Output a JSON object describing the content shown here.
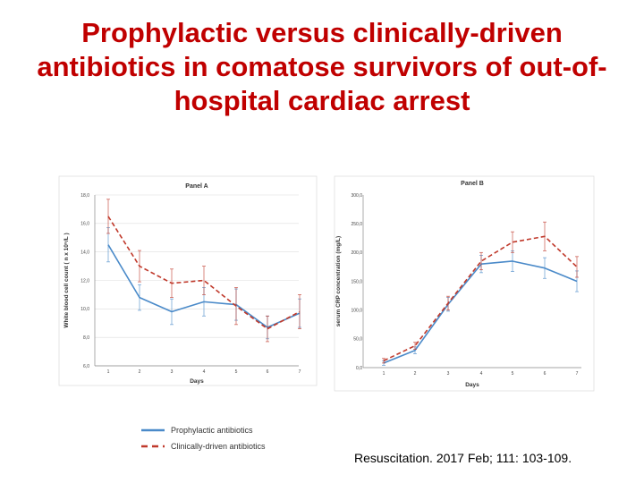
{
  "slide": {
    "title": "Prophylactic versus clinically-driven antibiotics in comatose survivors of out-of-hospital cardiac arrest",
    "citation": "Resuscitation. 2017 Feb; 111: 103-109."
  },
  "legend": [
    {
      "name": "Prophylactic antibiotics",
      "color": "#4a8ac9",
      "dash": false
    },
    {
      "name": "Clinically-driven antibiotics",
      "color": "#c0392b",
      "dash": true
    }
  ],
  "chart_data": [
    {
      "type": "line",
      "title": "Panel A",
      "xlabel": "Days",
      "ylabel": "White blood cell count ( n x 10⁹/L )",
      "x": [
        1,
        2,
        3,
        4,
        5,
        6,
        7
      ],
      "x_ticks": [
        "1",
        "2",
        "3",
        "4",
        "5",
        "6",
        "7"
      ],
      "ylim": [
        6,
        18
      ],
      "y_ticks": [
        "6,0",
        "8,0",
        "10,0",
        "12,0",
        "14,0",
        "16,0",
        "18,0"
      ],
      "grid": true,
      "series": [
        {
          "name": "Prophylactic antibiotics",
          "color": "#4a8ac9",
          "dash": false,
          "values": [
            14.5,
            10.8,
            9.8,
            10.5,
            10.3,
            8.7,
            9.7
          ],
          "err": [
            1.2,
            0.9,
            0.9,
            1.0,
            1.1,
            0.8,
            1.0
          ]
        },
        {
          "name": "Clinically-driven antibiotics",
          "color": "#c0392b",
          "dash": true,
          "values": [
            16.5,
            13.0,
            11.8,
            12.0,
            10.2,
            8.6,
            9.8
          ],
          "err": [
            1.2,
            1.1,
            1.0,
            1.0,
            1.3,
            0.9,
            1.2
          ]
        }
      ]
    },
    {
      "type": "line",
      "title": "Panel B",
      "xlabel": "Days",
      "ylabel": "serum CRP concentration (mg/L)",
      "x": [
        1,
        2,
        3,
        4,
        5,
        6,
        7
      ],
      "x_ticks": [
        "1",
        "2",
        "3",
        "4",
        "5",
        "6",
        "7"
      ],
      "ylim": [
        0,
        300
      ],
      "y_ticks": [
        "0,0",
        "50,0",
        "100,0",
        "150,0",
        "200,0",
        "250,0",
        "300,0"
      ],
      "grid": false,
      "series": [
        {
          "name": "Prophylactic antibiotics",
          "color": "#4a8ac9",
          "dash": false,
          "values": [
            8,
            30,
            110,
            180,
            185,
            173,
            150
          ],
          "err": [
            4,
            6,
            12,
            15,
            18,
            18,
            18
          ]
        },
        {
          "name": "Clinically-driven antibiotics",
          "color": "#c0392b",
          "dash": true,
          "values": [
            12,
            38,
            112,
            185,
            218,
            228,
            175
          ],
          "err": [
            4,
            6,
            12,
            15,
            18,
            25,
            18
          ]
        }
      ]
    }
  ]
}
